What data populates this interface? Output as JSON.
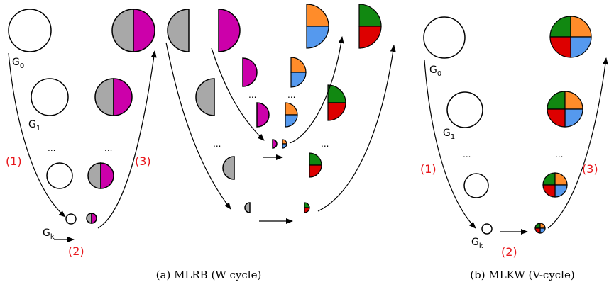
{
  "colors": {
    "gray": "#a8a8a8",
    "magenta": "#cc00aa",
    "orange": "#ff8c2a",
    "blue": "#5599ee",
    "green": "#118811",
    "red": "#dd0000",
    "step_label": "#e8161b"
  },
  "panel_a": {
    "graph_labels": {
      "g0": "G",
      "g0_sub": "0",
      "g1": "G",
      "g1_sub": "1",
      "gk": "G",
      "gk_sub": "k"
    },
    "steps": {
      "s1": "(1)",
      "s2": "(2)",
      "s3": "(3)"
    },
    "ellipsis": "...",
    "caption": "(a) MLRB (W cycle)"
  },
  "panel_b": {
    "graph_labels": {
      "g0": "G",
      "g0_sub": "0",
      "g1": "G",
      "g1_sub": "1",
      "gk": "G",
      "gk_sub": "k"
    },
    "steps": {
      "s1": "(1)",
      "s2": "(2)",
      "s3": "(3)"
    },
    "ellipsis": "...",
    "caption": "(b) MLKW (V-cycle)"
  }
}
